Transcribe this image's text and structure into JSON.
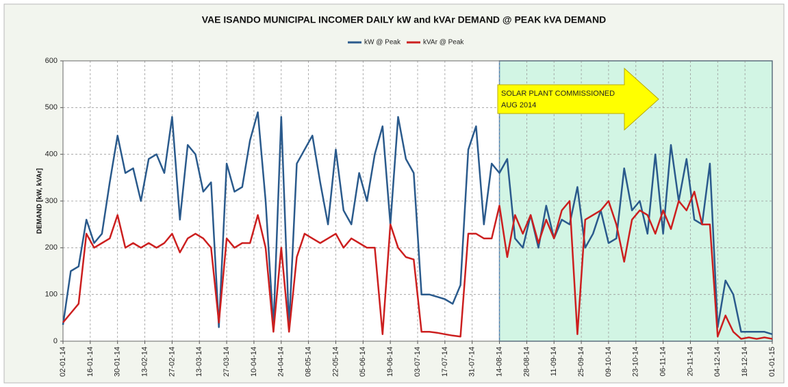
{
  "chart_data": {
    "type": "line",
    "title": "VAE ISANDO MUNICIPAL INCOMER DAILY kW and kVAr DEMAND @ PEAK kVA DEMAND",
    "y_label": "DEMAND [kW, kVAr]",
    "annotation": [
      "SOLAR PLANT COMMISSIONED",
      "AUG 2014"
    ],
    "shaded_from": "14-08-14",
    "grid": true,
    "legend": "top",
    "xlim": [
      "02-01-14",
      "01-01-15"
    ],
    "xticks": [
      "02-01-14",
      "16-01-14",
      "30-01-14",
      "13-02-14",
      "27-02-14",
      "13-03-14",
      "27-03-14",
      "10-04-14",
      "24-04-14",
      "08-05-14",
      "22-05-14",
      "05-06-14",
      "19-06-14",
      "03-07-14",
      "17-07-14",
      "31-07-14",
      "14-08-14",
      "28-08-14",
      "11-09-14",
      "25-09-14",
      "09-10-14",
      "23-10-14",
      "06-11-14",
      "20-11-14",
      "04-12-14",
      "18-12-14",
      "01-01-15"
    ],
    "ylim": [
      0,
      600
    ],
    "yticks": [
      0,
      100,
      200,
      300,
      400,
      500,
      600
    ],
    "x": [
      "02-01-14",
      "06-01-14",
      "10-01-14",
      "14-01-14",
      "18-01-14",
      "22-01-14",
      "26-01-14",
      "30-01-14",
      "03-02-14",
      "07-02-14",
      "11-02-14",
      "15-02-14",
      "19-02-14",
      "23-02-14",
      "27-02-14",
      "03-03-14",
      "07-03-14",
      "11-03-14",
      "15-03-14",
      "19-03-14",
      "23-03-14",
      "27-03-14",
      "31-03-14",
      "04-04-14",
      "08-04-14",
      "12-04-14",
      "16-04-14",
      "20-04-14",
      "24-04-14",
      "28-04-14",
      "02-05-14",
      "06-05-14",
      "10-05-14",
      "14-05-14",
      "18-05-14",
      "22-05-14",
      "26-05-14",
      "30-05-14",
      "03-06-14",
      "07-06-14",
      "11-06-14",
      "15-06-14",
      "19-06-14",
      "23-06-14",
      "27-06-14",
      "01-07-14",
      "05-07-14",
      "09-07-14",
      "13-07-14",
      "17-07-14",
      "21-07-14",
      "25-07-14",
      "29-07-14",
      "02-08-14",
      "06-08-14",
      "10-08-14",
      "14-08-14",
      "18-08-14",
      "22-08-14",
      "26-08-14",
      "30-08-14",
      "03-09-14",
      "07-09-14",
      "11-09-14",
      "15-09-14",
      "19-09-14",
      "23-09-14",
      "27-09-14",
      "01-10-14",
      "05-10-14",
      "09-10-14",
      "13-10-14",
      "17-10-14",
      "21-10-14",
      "25-10-14",
      "29-10-14",
      "02-11-14",
      "06-11-14",
      "10-11-14",
      "14-11-14",
      "18-11-14",
      "22-11-14",
      "26-11-14",
      "30-11-14",
      "04-12-14",
      "08-12-14",
      "12-12-14",
      "16-12-14",
      "20-12-14",
      "24-12-14",
      "28-12-14",
      "01-01-15"
    ],
    "series": [
      {
        "name": "kW @ Peak",
        "color": "#2a5a8c",
        "values": [
          35,
          150,
          160,
          260,
          210,
          230,
          340,
          440,
          360,
          370,
          300,
          390,
          400,
          360,
          480,
          260,
          420,
          400,
          320,
          340,
          30,
          380,
          320,
          330,
          430,
          490,
          300,
          30,
          480,
          30,
          380,
          410,
          440,
          340,
          250,
          410,
          280,
          250,
          360,
          300,
          400,
          460,
          250,
          480,
          390,
          360,
          100,
          100,
          95,
          90,
          80,
          120,
          410,
          460,
          250,
          380,
          360,
          390,
          220,
          200,
          270,
          200,
          290,
          220,
          260,
          250,
          330,
          200,
          230,
          280,
          210,
          220,
          370,
          280,
          300,
          230,
          400,
          230,
          420,
          300,
          390,
          260,
          250,
          380,
          30,
          130,
          100,
          20,
          20,
          20,
          20,
          15
        ]
      },
      {
        "name": "kVAr @ Peak",
        "color": "#cc1f1f",
        "values": [
          40,
          60,
          80,
          230,
          200,
          210,
          220,
          270,
          200,
          210,
          200,
          210,
          200,
          210,
          230,
          190,
          220,
          230,
          220,
          200,
          40,
          220,
          200,
          210,
          210,
          270,
          200,
          20,
          200,
          20,
          180,
          230,
          220,
          210,
          220,
          230,
          200,
          220,
          210,
          200,
          200,
          15,
          250,
          200,
          180,
          175,
          20,
          20,
          18,
          15,
          12,
          10,
          230,
          230,
          220,
          220,
          290,
          180,
          270,
          230,
          270,
          210,
          260,
          220,
          280,
          300,
          15,
          260,
          270,
          280,
          300,
          250,
          170,
          260,
          280,
          270,
          230,
          280,
          240,
          300,
          280,
          320,
          250,
          250,
          10,
          55,
          20,
          5,
          8,
          5,
          8,
          5
        ]
      }
    ]
  }
}
